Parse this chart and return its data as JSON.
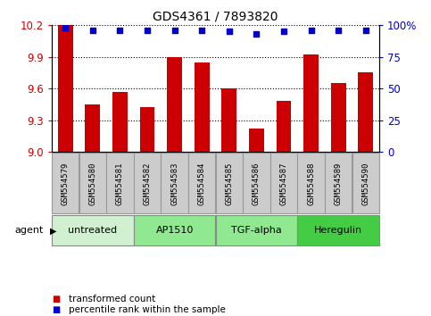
{
  "title": "GDS4361 / 7893820",
  "samples": [
    "GSM554579",
    "GSM554580",
    "GSM554581",
    "GSM554582",
    "GSM554583",
    "GSM554584",
    "GSM554585",
    "GSM554586",
    "GSM554587",
    "GSM554588",
    "GSM554589",
    "GSM554590"
  ],
  "transformed_counts": [
    10.2,
    9.45,
    9.57,
    9.42,
    9.9,
    9.85,
    9.6,
    9.22,
    9.48,
    9.92,
    9.65,
    9.75
  ],
  "percentile_ranks": [
    98,
    96,
    96,
    96,
    96,
    96,
    95,
    93,
    95,
    96,
    96,
    96
  ],
  "agents": [
    {
      "label": "untreated",
      "start": 0,
      "end": 3,
      "color": "#d0f0d0"
    },
    {
      "label": "AP1510",
      "start": 3,
      "end": 6,
      "color": "#90e890"
    },
    {
      "label": "TGF-alpha",
      "start": 6,
      "end": 9,
      "color": "#90e890"
    },
    {
      "label": "Heregulin",
      "start": 9,
      "end": 12,
      "color": "#44cc44"
    }
  ],
  "ylim_left": [
    9.0,
    10.2
  ],
  "ylim_right": [
    0,
    100
  ],
  "yticks_left": [
    9.0,
    9.3,
    9.6,
    9.9,
    10.2
  ],
  "yticks_right": [
    0,
    25,
    50,
    75,
    100
  ],
  "bar_color": "#cc0000",
  "dot_color": "#0000cc",
  "bar_width": 0.55,
  "legend_bar_label": "transformed count",
  "legend_dot_label": "percentile rank within the sample",
  "sample_box_color": "#cccccc",
  "sample_box_edge": "#999999",
  "background_color": "#ffffff"
}
